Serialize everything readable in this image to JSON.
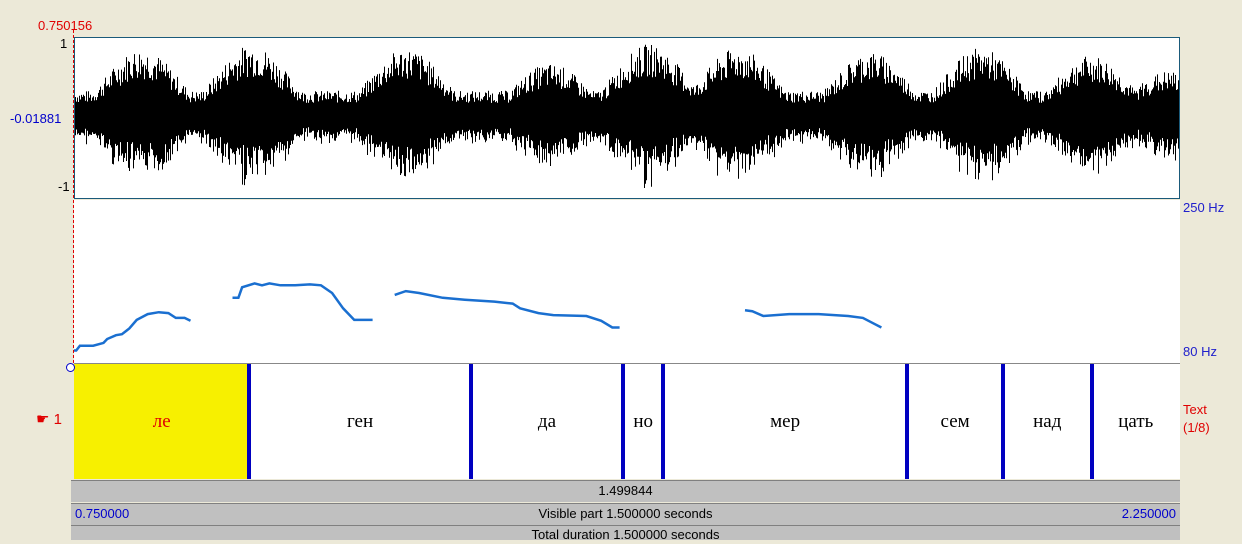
{
  "cursor": {
    "time": "0.750156"
  },
  "waveform": {
    "max_label": "1",
    "mid_label": "-0.01881",
    "min_label": "-1",
    "colors": {
      "border": "#1a5a7a",
      "signal": "#000000"
    }
  },
  "pitch": {
    "hi_label": "250 Hz",
    "lo_label": "80 Hz",
    "color": "#1a6fd0",
    "range_hz": [
      80,
      250
    ],
    "segments": [
      [
        [
          0.75,
          93
        ],
        [
          0.753,
          93
        ],
        [
          0.758,
          98
        ],
        [
          0.776,
          98
        ],
        [
          0.79,
          101
        ],
        [
          0.795,
          105
        ],
        [
          0.807,
          109
        ],
        [
          0.815,
          110
        ],
        [
          0.825,
          116
        ],
        [
          0.835,
          125
        ],
        [
          0.85,
          131
        ],
        [
          0.865,
          133
        ],
        [
          0.878,
          132
        ],
        [
          0.888,
          127
        ],
        [
          0.9,
          127
        ],
        [
          0.908,
          124
        ]
      ],
      [
        [
          0.965,
          148
        ],
        [
          0.973,
          148
        ],
        [
          0.978,
          159
        ],
        [
          0.995,
          163
        ],
        [
          1.005,
          161
        ],
        [
          1.015,
          163
        ],
        [
          1.03,
          161
        ],
        [
          1.05,
          161
        ],
        [
          1.07,
          162
        ],
        [
          1.085,
          161
        ],
        [
          1.1,
          153
        ],
        [
          1.115,
          137
        ],
        [
          1.13,
          125
        ],
        [
          1.155,
          125
        ]
      ],
      [
        [
          1.185,
          151
        ],
        [
          1.2,
          155
        ],
        [
          1.218,
          153
        ],
        [
          1.25,
          148
        ],
        [
          1.28,
          146
        ],
        [
          1.32,
          144
        ],
        [
          1.345,
          142
        ],
        [
          1.355,
          137
        ],
        [
          1.38,
          132
        ],
        [
          1.4,
          130
        ],
        [
          1.445,
          129
        ],
        [
          1.465,
          124
        ],
        [
          1.48,
          117
        ],
        [
          1.49,
          117
        ]
      ],
      [
        [
          1.66,
          135
        ],
        [
          1.67,
          134
        ],
        [
          1.685,
          129
        ],
        [
          1.72,
          131
        ],
        [
          1.76,
          131
        ],
        [
          1.8,
          129
        ],
        [
          1.82,
          127
        ],
        [
          1.835,
          121
        ],
        [
          1.845,
          117
        ]
      ]
    ]
  },
  "tier": {
    "number": "☛ 1",
    "name": "Text",
    "count": "(1/8)",
    "intervals": [
      {
        "text": "ле",
        "selected": true,
        "start": 0.75,
        "end": 0.988
      },
      {
        "text": "ген",
        "selected": false,
        "start": 0.988,
        "end": 1.288
      },
      {
        "text": "да",
        "selected": false,
        "start": 1.288,
        "end": 1.495
      },
      {
        "text": "но",
        "selected": false,
        "start": 1.495,
        "end": 1.549
      },
      {
        "text": "мер",
        "selected": false,
        "start": 1.549,
        "end": 1.88
      },
      {
        "text": "сем",
        "selected": false,
        "start": 1.88,
        "end": 2.01
      },
      {
        "text": "над",
        "selected": false,
        "start": 2.01,
        "end": 2.13
      },
      {
        "text": "цать",
        "selected": false,
        "start": 2.13,
        "end": 2.25
      }
    ],
    "colors": {
      "selected": "#f7f000",
      "boundary": "#0000c0",
      "selected_text": "#e00000"
    }
  },
  "bars": {
    "selection_duration": "1.499844",
    "visible_start": "0.750000",
    "visible_label": "Visible part 1.500000 seconds",
    "visible_end": "2.250000",
    "total_label": "Total duration 1.500000 seconds"
  },
  "time_range": [
    0.75,
    2.25
  ]
}
